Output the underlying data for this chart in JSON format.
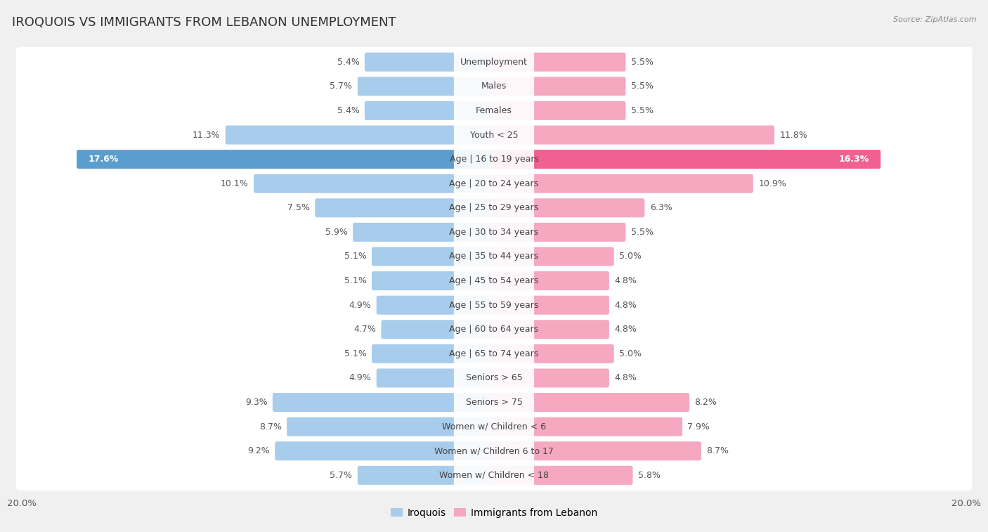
{
  "title": "IROQUOIS VS IMMIGRANTS FROM LEBANON UNEMPLOYMENT",
  "source": "Source: ZipAtlas.com",
  "categories": [
    "Unemployment",
    "Males",
    "Females",
    "Youth < 25",
    "Age | 16 to 19 years",
    "Age | 20 to 24 years",
    "Age | 25 to 29 years",
    "Age | 30 to 34 years",
    "Age | 35 to 44 years",
    "Age | 45 to 54 years",
    "Age | 55 to 59 years",
    "Age | 60 to 64 years",
    "Age | 65 to 74 years",
    "Seniors > 65",
    "Seniors > 75",
    "Women w/ Children < 6",
    "Women w/ Children 6 to 17",
    "Women w/ Children < 18"
  ],
  "iroquois_values": [
    5.4,
    5.7,
    5.4,
    11.3,
    17.6,
    10.1,
    7.5,
    5.9,
    5.1,
    5.1,
    4.9,
    4.7,
    5.1,
    4.9,
    9.3,
    8.7,
    9.2,
    5.7
  ],
  "lebanon_values": [
    5.5,
    5.5,
    5.5,
    11.8,
    16.3,
    10.9,
    6.3,
    5.5,
    5.0,
    4.8,
    4.8,
    4.8,
    5.0,
    4.8,
    8.2,
    7.9,
    8.7,
    5.8
  ],
  "iroquois_color": "#A8CCEB",
  "lebanon_color": "#F5A8C0",
  "iroquois_highlight_color": "#5B9DCE",
  "lebanon_highlight_color": "#F06090",
  "row_bg_color": "#FFFFFF",
  "sep_color": "#E0E0E0",
  "background_color": "#F0F0F0",
  "axis_max": 20.0,
  "label_fontsize": 9.0,
  "value_fontsize": 9.0,
  "title_fontsize": 13,
  "source_fontsize": 8,
  "legend_label_iroquois": "Iroquois",
  "legend_label_lebanon": "Immigrants from Lebanon"
}
